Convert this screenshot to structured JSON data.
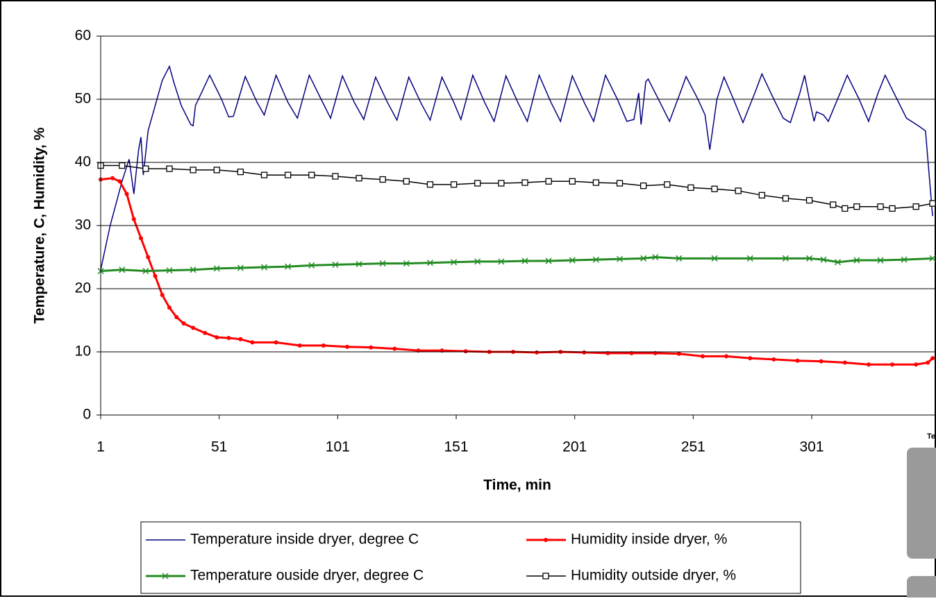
{
  "chart_data": {
    "type": "line",
    "xlabel": "Time, min",
    "ylabel": "Temperature, C, Humidity, %",
    "xlim": [
      1,
      353
    ],
    "xticks": [
      1,
      51,
      101,
      151,
      201,
      251,
      301
    ],
    "ylim": [
      0,
      60
    ],
    "yticks": [
      0,
      10,
      20,
      30,
      40,
      50,
      60
    ],
    "grid": true,
    "series": [
      {
        "name": "Temperature inside dryer, degree C",
        "color": "#000080",
        "marker": "none",
        "x": [
          1,
          5,
          10,
          13,
          15,
          17,
          18,
          19,
          21,
          24,
          27,
          30,
          32,
          35,
          39,
          40,
          41,
          47,
          52,
          55,
          57,
          62,
          67,
          70,
          75,
          80,
          84,
          89,
          94,
          98,
          103,
          108,
          112,
          117,
          122,
          126,
          131,
          136,
          140,
          145,
          150,
          153,
          158,
          163,
          167,
          172,
          177,
          181,
          186,
          191,
          195,
          200,
          205,
          209,
          214,
          219,
          223,
          226,
          228,
          229,
          231,
          232,
          237,
          241,
          245,
          248,
          253,
          256,
          258,
          261,
          264,
          268,
          272,
          277,
          280,
          285,
          289,
          292,
          296,
          298,
          300,
          302,
          303,
          306,
          308,
          313,
          316,
          321,
          325,
          329,
          332,
          337,
          341,
          346,
          349,
          352
        ],
        "values": [
          23,
          30,
          37,
          40.5,
          35,
          42,
          44,
          38,
          45,
          49,
          53,
          55.2,
          52.5,
          49,
          46,
          45.8,
          49,
          53.8,
          50,
          47.2,
          47.3,
          53.6,
          49.5,
          47.5,
          53.8,
          49.5,
          47,
          53.8,
          50,
          47,
          53.7,
          49.5,
          46.8,
          53.5,
          49.5,
          46.7,
          53.5,
          49.5,
          46.7,
          53.5,
          49.5,
          46.8,
          53.8,
          49.5,
          46.5,
          53.7,
          49.5,
          46.5,
          53.8,
          49.5,
          46.5,
          53.7,
          49.5,
          46.5,
          53.8,
          50,
          46.5,
          46.8,
          51,
          46,
          52.8,
          53.2,
          49.5,
          46.5,
          50.5,
          53.6,
          50,
          47.5,
          42,
          50,
          53.5,
          50,
          46.3,
          51,
          54,
          50,
          47,
          46.3,
          51,
          53.8,
          50,
          46.5,
          48,
          47.5,
          46.5,
          51,
          53.8,
          50,
          46.5,
          51,
          53.8,
          50,
          47,
          45.8,
          45,
          31.5
        ]
      },
      {
        "name": "Humidity inside dryer, %",
        "color": "#ff0000",
        "marker": "dot",
        "x": [
          1,
          6,
          9,
          12,
          15,
          18,
          21,
          24,
          27,
          30,
          33,
          36,
          40,
          45,
          50,
          55,
          60,
          65,
          75,
          85,
          95,
          105,
          115,
          125,
          135,
          145,
          155,
          165,
          175,
          185,
          195,
          205,
          215,
          225,
          235,
          245,
          255,
          265,
          275,
          285,
          295,
          305,
          315,
          325,
          335,
          345,
          350,
          352
        ],
        "values": [
          37.3,
          37.5,
          37,
          35,
          31,
          28,
          25,
          22,
          19,
          17,
          15.5,
          14.5,
          13.8,
          13,
          12.3,
          12.2,
          12,
          11.5,
          11.5,
          11,
          11,
          10.8,
          10.7,
          10.5,
          10.2,
          10.2,
          10.1,
          10,
          10,
          9.9,
          10,
          9.9,
          9.8,
          9.8,
          9.8,
          9.7,
          9.3,
          9.3,
          9,
          8.8,
          8.6,
          8.5,
          8.3,
          8,
          8,
          8,
          8.3,
          9
        ]
      },
      {
        "name": "Temperature ouside dryer, degree C",
        "color": "#228b22",
        "marker": "cross",
        "x": [
          1,
          10,
          20,
          30,
          40,
          50,
          60,
          70,
          80,
          90,
          100,
          110,
          120,
          130,
          140,
          150,
          160,
          170,
          180,
          190,
          200,
          210,
          220,
          230,
          235,
          245,
          260,
          275,
          290,
          300,
          306,
          312,
          320,
          330,
          340,
          352
        ],
        "values": [
          22.8,
          23,
          22.8,
          22.9,
          23,
          23.2,
          23.3,
          23.4,
          23.5,
          23.7,
          23.8,
          23.9,
          24,
          24,
          24.1,
          24.2,
          24.3,
          24.3,
          24.4,
          24.4,
          24.5,
          24.6,
          24.7,
          24.8,
          25,
          24.8,
          24.8,
          24.8,
          24.8,
          24.8,
          24.6,
          24.2,
          24.5,
          24.5,
          24.6,
          24.8
        ]
      },
      {
        "name": "Humidity outside dryer, %",
        "color": "#000000",
        "marker": "square",
        "x": [
          1,
          10,
          20,
          30,
          40,
          50,
          60,
          70,
          80,
          90,
          100,
          110,
          120,
          130,
          140,
          150,
          160,
          170,
          180,
          190,
          200,
          210,
          220,
          230,
          240,
          250,
          260,
          270,
          280,
          290,
          300,
          310,
          315,
          320,
          330,
          335,
          345,
          352
        ],
        "values": [
          39.5,
          39.5,
          39,
          39,
          38.8,
          38.8,
          38.5,
          38,
          38,
          38,
          37.8,
          37.5,
          37.3,
          37,
          36.5,
          36.5,
          36.7,
          36.7,
          36.8,
          37,
          37,
          36.8,
          36.7,
          36.3,
          36.5,
          36,
          35.8,
          35.5,
          34.8,
          34.3,
          34,
          33.3,
          32.7,
          33,
          33,
          32.7,
          33,
          33.5
        ]
      }
    ]
  },
  "clipped_label": "Te"
}
